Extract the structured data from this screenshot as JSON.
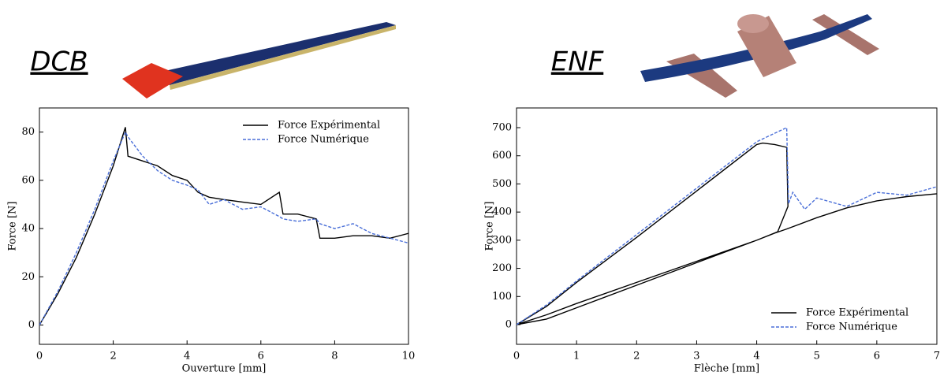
{
  "chart_data": [
    {
      "type": "line",
      "title": "DCB",
      "x_label": "Ouverture [mm]",
      "y_label": "Force [N]",
      "xlim": [
        0,
        10
      ],
      "ylim": [
        -8,
        90
      ],
      "xticks": [
        0,
        2,
        4,
        6,
        8,
        10
      ],
      "yticks": [
        0,
        20,
        40,
        60,
        80
      ],
      "legend": "upper right",
      "series": [
        {
          "name": "Force Expérimental",
          "color": "#000000",
          "dashed": false,
          "x": [
            0,
            0.5,
            1,
            1.5,
            2,
            2.33,
            2.4,
            2.8,
            3.2,
            3.6,
            4.0,
            4.3,
            4.6,
            5.0,
            5.5,
            6.0,
            6.5,
            6.6,
            7.0,
            7.5,
            7.6,
            8.0,
            8.5,
            9.0,
            9.5,
            10
          ],
          "values": [
            0,
            13,
            28,
            46,
            66,
            82,
            70,
            68,
            66,
            62,
            60,
            55,
            53,
            52,
            51,
            50,
            55,
            46,
            46,
            44,
            36,
            36,
            37,
            37,
            36,
            38
          ]
        },
        {
          "name": "Force Numérique",
          "color": "#4a6fd8",
          "dashed": true,
          "x": [
            0,
            0.5,
            1,
            1.5,
            2,
            2.33,
            2.4,
            2.8,
            3.2,
            3.6,
            4.0,
            4.3,
            4.6,
            5.0,
            5.5,
            6.0,
            6.5,
            6.6,
            7.0,
            7.5,
            7.6,
            8.0,
            8.5,
            9.0,
            9.5,
            10
          ],
          "values": [
            0,
            14,
            30,
            48,
            68,
            80,
            78,
            70,
            64,
            60,
            58,
            56,
            50,
            52,
            48,
            49,
            45,
            44,
            43,
            44,
            42,
            40,
            42,
            38,
            36,
            34
          ]
        }
      ]
    },
    {
      "type": "line",
      "title": "ENF",
      "x_label": "Flèche [mm]",
      "y_label": "Force [N]",
      "xlim": [
        0,
        7
      ],
      "ylim": [
        -70,
        770
      ],
      "xticks": [
        0,
        1,
        2,
        3,
        4,
        5,
        6,
        7
      ],
      "yticks": [
        0,
        100,
        200,
        300,
        400,
        500,
        600,
        700
      ],
      "legend": "lower right",
      "series": [
        {
          "name": "Force Expérimental",
          "color": "#000000",
          "dashed": false,
          "x": [
            0,
            0.5,
            1,
            2,
            3,
            4,
            4.1,
            4.3,
            4.5,
            4.52,
            4.35,
            4,
            3,
            2,
            1,
            0.5,
            0,
            0.5,
            1,
            2,
            3,
            4,
            4.3,
            4.5,
            5,
            5.5,
            6,
            6.5,
            7
          ],
          "values": [
            0,
            65,
            150,
            310,
            475,
            640,
            645,
            640,
            630,
            420,
            330,
            300,
            225,
            150,
            75,
            35,
            0,
            20,
            60,
            140,
            220,
            300,
            325,
            340,
            380,
            415,
            440,
            455,
            465
          ]
        },
        {
          "name": "Force Numérique",
          "color": "#4a6fd8",
          "dashed": true,
          "x": [
            0,
            0.5,
            1,
            2,
            3,
            4,
            4.3,
            4.5,
            4.53,
            4.6,
            4.8,
            5,
            5.5,
            6,
            6.5,
            7
          ],
          "values": [
            0,
            70,
            155,
            320,
            485,
            650,
            680,
            700,
            430,
            470,
            410,
            450,
            420,
            470,
            460,
            490
          ]
        }
      ]
    }
  ]
}
